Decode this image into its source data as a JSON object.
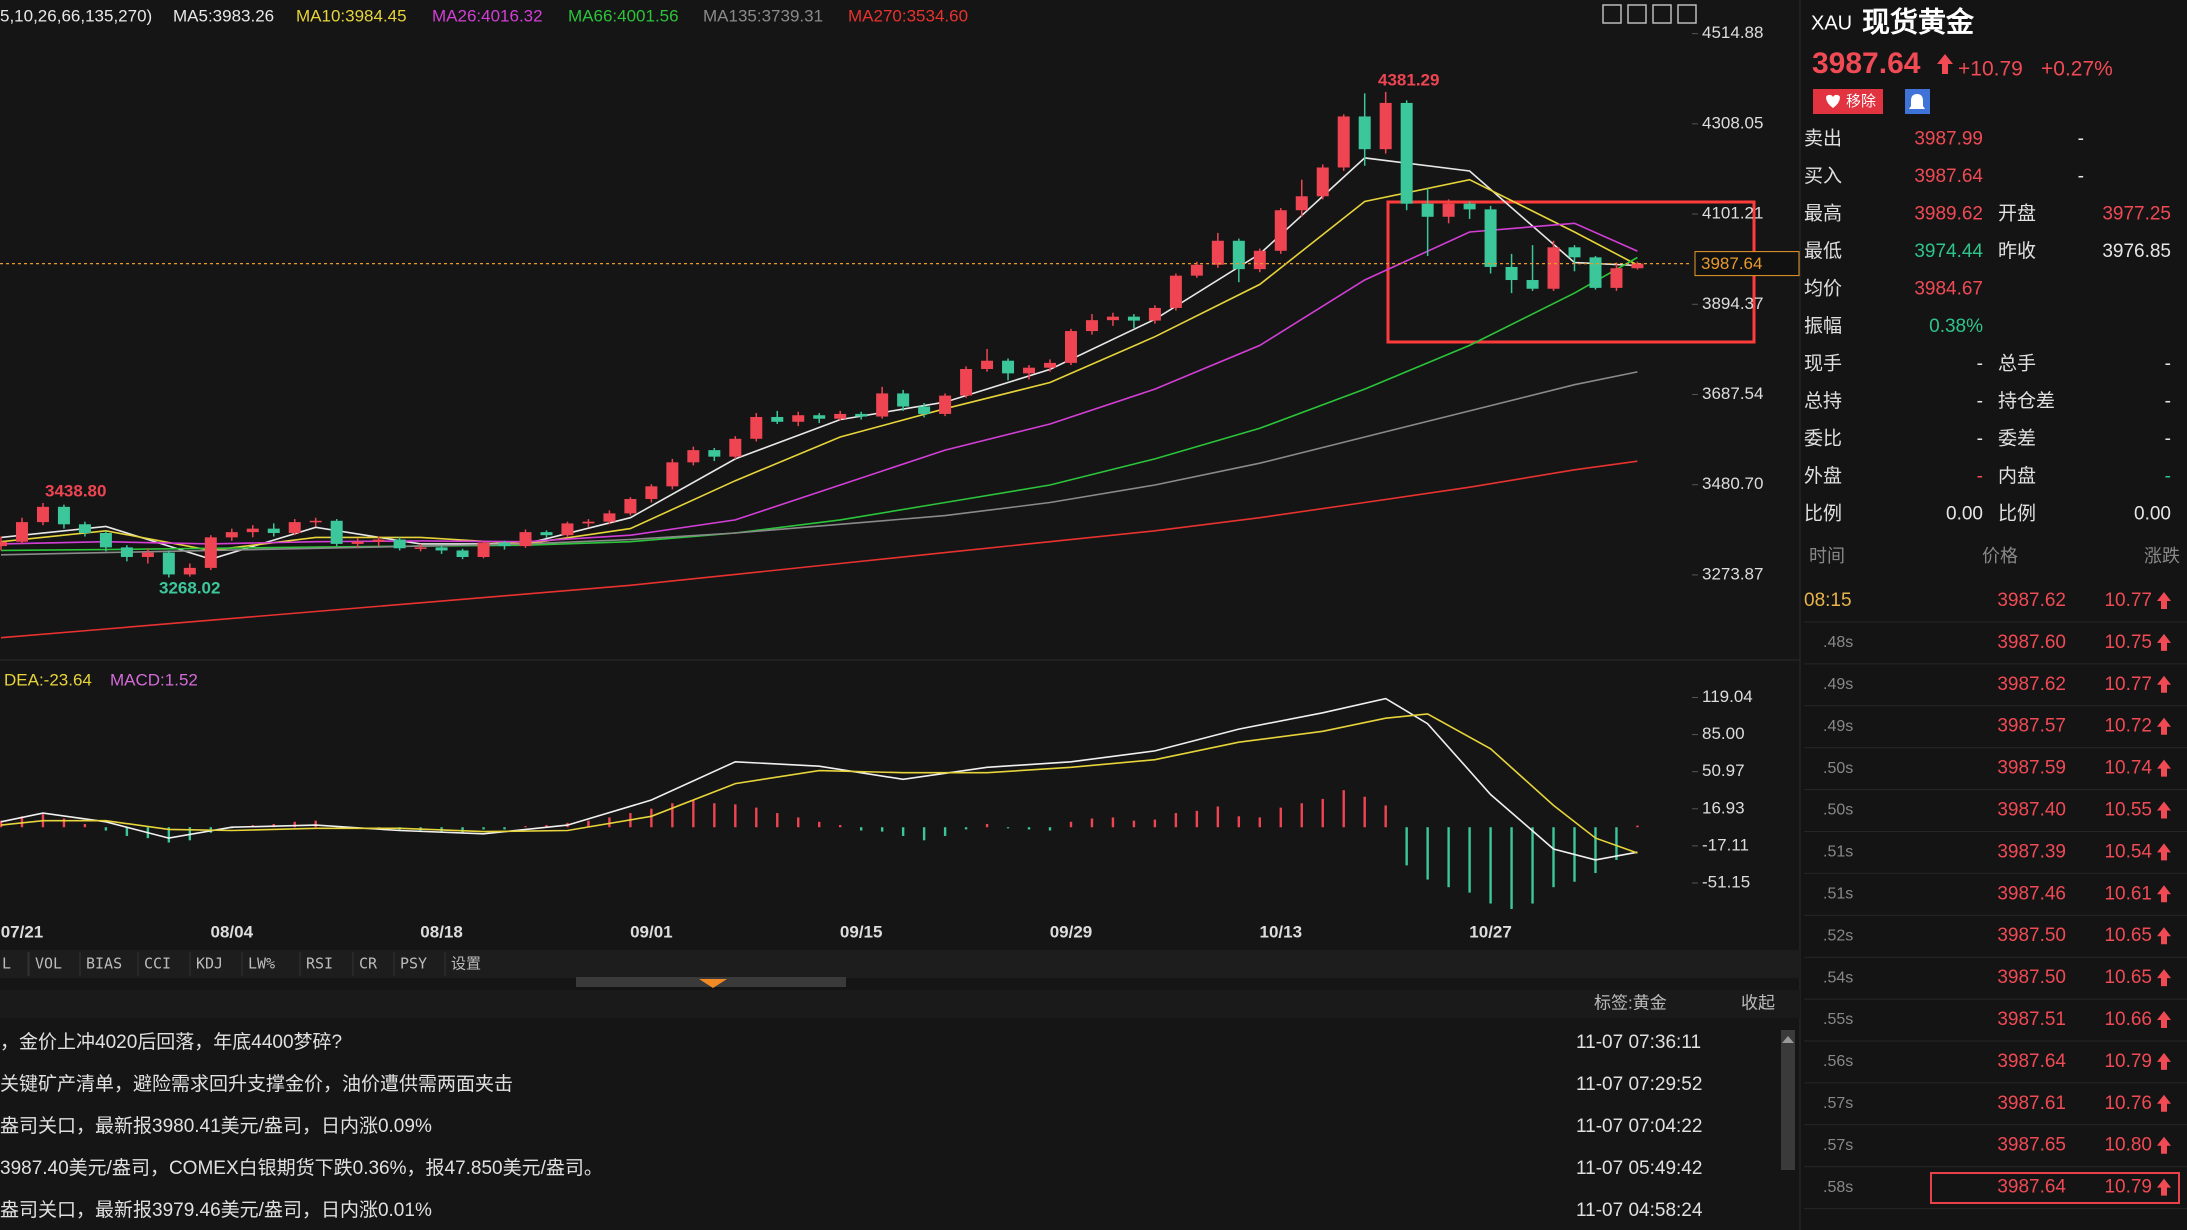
{
  "chart_data": [
    {
      "type": "candlestick",
      "legend_prefix": "5,10,26,66,135,270)",
      "ylim": [
        3088,
        4592
      ],
      "yticks": [
        4514.88,
        4308.05,
        4101.21,
        3894.37,
        3687.54,
        {
          "value": 3480.7,
          "label": "3480.70"
        },
        3273.87
      ],
      "up_color": "#ef4552",
      "down_color": "#3cc79b",
      "candles": [
        [
          3340,
          3362,
          3330,
          3350
        ],
        [
          3350,
          3405,
          3345,
          3395
        ],
        [
          3395,
          3438.8,
          3388,
          3430
        ],
        [
          3430,
          3435,
          3380,
          3390
        ],
        [
          3390,
          3396,
          3362,
          3370
        ],
        [
          3370,
          3375,
          3328,
          3337
        ],
        [
          3337,
          3342,
          3305,
          3315
        ],
        [
          3315,
          3335,
          3300,
          3325
        ],
        [
          3325,
          3330,
          3268.02,
          3275
        ],
        [
          3275,
          3300,
          3270,
          3290
        ],
        [
          3290,
          3365,
          3285,
          3360
        ],
        [
          3360,
          3380,
          3352,
          3372
        ],
        [
          3372,
          3388,
          3360,
          3380
        ],
        [
          3380,
          3392,
          3362,
          3370
        ],
        [
          3370,
          3402,
          3365,
          3395
        ],
        [
          3395,
          3405,
          3385,
          3398
        ],
        [
          3398,
          3402,
          3340,
          3345
        ],
        [
          3345,
          3358,
          3335,
          3350
        ],
        [
          3350,
          3362,
          3340,
          3355
        ],
        [
          3355,
          3360,
          3330,
          3335
        ],
        [
          3335,
          3345,
          3328,
          3337
        ],
        [
          3337,
          3342,
          3322,
          3330
        ],
        [
          3330,
          3334,
          3310,
          3315
        ],
        [
          3315,
          3352,
          3312,
          3348
        ],
        [
          3348,
          3352,
          3332,
          3340
        ],
        [
          3340,
          3378,
          3336,
          3372
        ],
        [
          3372,
          3376,
          3358,
          3365
        ],
        [
          3365,
          3396,
          3360,
          3392
        ],
        [
          3392,
          3402,
          3384,
          3396
        ],
        [
          3396,
          3422,
          3390,
          3415
        ],
        [
          3415,
          3452,
          3410,
          3448
        ],
        [
          3448,
          3482,
          3440,
          3477
        ],
        [
          3477,
          3540,
          3470,
          3532
        ],
        [
          3532,
          3568,
          3525,
          3560
        ],
        [
          3560,
          3565,
          3535,
          3545
        ],
        [
          3545,
          3592,
          3540,
          3586
        ],
        [
          3586,
          3645,
          3580,
          3636
        ],
        [
          3636,
          3650,
          3620,
          3625
        ],
        [
          3625,
          3648,
          3615,
          3640
        ],
        [
          3640,
          3645,
          3622,
          3632
        ],
        [
          3632,
          3650,
          3628,
          3643
        ],
        [
          3643,
          3648,
          3630,
          3637
        ],
        [
          3637,
          3705,
          3632,
          3690
        ],
        [
          3690,
          3698,
          3650,
          3660
        ],
        [
          3660,
          3668,
          3635,
          3643
        ],
        [
          3643,
          3690,
          3638,
          3685
        ],
        [
          3685,
          3752,
          3680,
          3746
        ],
        [
          3746,
          3792,
          3740,
          3765
        ],
        [
          3765,
          3770,
          3720,
          3736
        ],
        [
          3736,
          3755,
          3722,
          3749
        ],
        [
          3749,
          3768,
          3740,
          3760
        ],
        [
          3760,
          3838,
          3755,
          3833
        ],
        [
          3833,
          3872,
          3825,
          3858
        ],
        [
          3858,
          3875,
          3845,
          3866
        ],
        [
          3866,
          3872,
          3840,
          3857
        ],
        [
          3857,
          3892,
          3850,
          3886
        ],
        [
          3886,
          3965,
          3880,
          3960
        ],
        [
          3960,
          3992,
          3955,
          3985
        ],
        [
          3985,
          4058,
          3978,
          4040
        ],
        [
          4040,
          4045,
          3945,
          3975
        ],
        [
          3975,
          4022,
          3968,
          4017
        ],
        [
          4017,
          4115,
          4010,
          4110
        ],
        [
          4110,
          4180,
          4095,
          4142
        ],
        [
          4142,
          4215,
          4135,
          4208
        ],
        [
          4208,
          4330,
          4200,
          4325
        ],
        [
          4325,
          4378,
          4212,
          4250
        ],
        [
          4250,
          4381.29,
          4240,
          4356
        ],
        [
          4356,
          4362,
          4110,
          4125
        ],
        [
          4125,
          4160,
          4005,
          4095
        ],
        [
          4095,
          4135,
          4080,
          4125
        ],
        [
          4125,
          4130,
          4090,
          4112
        ],
        [
          4112,
          4120,
          3965,
          3980
        ],
        [
          3980,
          4010,
          3920,
          3950
        ],
        [
          3950,
          4030,
          3925,
          3930
        ],
        [
          3930,
          4040,
          3925,
          4025
        ],
        [
          4025,
          4030,
          3970,
          4002
        ],
        [
          4002,
          4005,
          3928,
          3932
        ],
        [
          3932,
          3990,
          3925,
          3977
        ],
        [
          3977,
          3992,
          3974,
          3987.64
        ]
      ],
      "annotations": [
        {
          "label": "4381.29"
        },
        {
          "label": "3438.80"
        },
        {
          "label": "3268.02"
        }
      ],
      "x": [
        0,
        5,
        10,
        15,
        20,
        25,
        30,
        35,
        40,
        45,
        50,
        55,
        60,
        65,
        70,
        75,
        78
      ],
      "series": [
        {
          "name": "MA5:3983.26",
          "color": "#e8e8e8",
          "values": [
            3360,
            3385,
            3310,
            3383,
            3345,
            3345,
            3405,
            3540,
            3630,
            3670,
            3745,
            3860,
            4010,
            4230,
            4200,
            3990,
            3983.26
          ]
        },
        {
          "name": "MA10:3984.45",
          "color": "#e6d43a",
          "values": [
            3350,
            3375,
            3330,
            3360,
            3360,
            3345,
            3380,
            3490,
            3590,
            3655,
            3715,
            3820,
            3940,
            4130,
            4180,
            4060,
            3984.45
          ]
        },
        {
          "name": "MA26:4016.32",
          "color": "#d33fd6",
          "values": [
            3345,
            3350,
            3345,
            3350,
            3352,
            3350,
            3365,
            3400,
            3480,
            3560,
            3620,
            3700,
            3800,
            3950,
            4060,
            4080,
            4016.32
          ]
        },
        {
          "name": "MA66:4001.56",
          "color": "#2bc43a",
          "values": [
            3330,
            3332,
            3335,
            3338,
            3340,
            3342,
            3350,
            3370,
            3400,
            3440,
            3480,
            3540,
            3610,
            3700,
            3800,
            3920,
            4001.56
          ]
        },
        {
          "name": "MA135:3739.31",
          "color": "#8a8a8a",
          "values": [
            3320,
            3325,
            3330,
            3335,
            3340,
            3345,
            3355,
            3370,
            3390,
            3410,
            3440,
            3480,
            3530,
            3590,
            3650,
            3710,
            3739.31
          ]
        },
        {
          "name": "MA270:3534.60",
          "color": "#e8322f",
          "values": [
            3130,
            3150,
            3170,
            3190,
            3210,
            3230,
            3250,
            3275,
            3300,
            3325,
            3350,
            3375,
            3405,
            3440,
            3475,
            3515,
            3534.6
          ]
        }
      ]
    },
    {
      "type": "macd",
      "ylim": [
        -79.6,
        147
      ],
      "yticks": [
        119.04,
        {
          "value": 85,
          "label": "85.00"
        },
        50.97,
        16.93,
        -17.11,
        -51.15
      ],
      "categories": [
        null,
        "07/21",
        null,
        null,
        null,
        null,
        null,
        null,
        null,
        null,
        null,
        "08/04",
        null,
        null,
        null,
        null,
        null,
        null,
        null,
        null,
        null,
        "08/18",
        null,
        null,
        null,
        null,
        null,
        null,
        null,
        null,
        null,
        "09/01",
        null,
        null,
        null,
        null,
        null,
        null,
        null,
        null,
        null,
        "09/15",
        null,
        null,
        null,
        null,
        null,
        null,
        null,
        null,
        null,
        "09/29",
        null,
        null,
        null,
        null,
        null,
        null,
        null,
        null,
        null,
        "10/13",
        null,
        null,
        null,
        null,
        null,
        null,
        null,
        null,
        null,
        "10/27",
        null,
        null,
        null,
        null,
        null,
        null,
        null
      ],
      "histogram": {
        "name": "MACD:1.52",
        "color": "#d36bd8",
        "up_color": "#ef4552",
        "down_color": "#3cc79b",
        "values": [
          6,
          10,
          12,
          8,
          3,
          -3,
          -8,
          -10,
          -14,
          -12,
          -5,
          -1,
          2,
          3,
          5,
          6,
          1,
          -1,
          -2,
          -3,
          -3,
          -4,
          -5,
          -2,
          -2,
          1,
          2,
          4,
          6,
          9,
          13,
          17,
          22,
          25,
          22,
          21,
          18,
          13,
          9,
          5,
          2,
          -3,
          -4,
          -8,
          -12,
          -8,
          -2,
          3,
          -1,
          -2,
          -3,
          5,
          8,
          9,
          6,
          7,
          13,
          15,
          19,
          10,
          9,
          18,
          22,
          26,
          34,
          28,
          20,
          -35,
          -48,
          -55,
          -60,
          -70,
          -75,
          -70,
          -55,
          -50,
          -42,
          -30,
          1.52
        ]
      },
      "x": [
        0,
        2,
        5,
        8,
        11,
        15,
        19,
        23,
        27,
        31,
        35,
        39,
        43,
        47,
        51,
        55,
        59,
        63,
        66,
        68,
        71,
        74,
        76,
        78
      ],
      "series": [
        {
          "color": "#f0f0f0",
          "values": [
            5,
            13,
            5,
            -10,
            0,
            2,
            -3,
            -6,
            2,
            25,
            60,
            56,
            44,
            55,
            60,
            70,
            90,
            105,
            118,
            95,
            30,
            -20,
            -30,
            -22.9
          ]
        },
        {
          "name": "DEA:-23.64",
          "color": "#e6d43a",
          "values": [
            2,
            6,
            6,
            -2,
            -3,
            -1,
            -1,
            -4,
            -3,
            10,
            40,
            52,
            50,
            50,
            55,
            62,
            78,
            88,
            100,
            104,
            72,
            20,
            -10,
            -23.64
          ]
        }
      ]
    }
  ],
  "toolbar": {
    "items": [
      "L",
      "VOL",
      "BIAS",
      "CCI",
      "KDJ",
      "LW%",
      "RSI",
      "CR",
      "PSY",
      "设置"
    ],
    "tag": "标签:黄金",
    "collapse": "收起"
  },
  "news": [
    {
      "text": "，金价上冲4020后回落，年底4400梦碎?",
      "time": "11-07 07:36:11"
    },
    {
      "text": "关键矿产清单，避险需求回升支撑金价，油价遭供需两面夹击",
      "time": "11-07 07:29:52"
    },
    {
      "text": "盎司关口，最新报3980.41美元/盎司，日内涨0.09%",
      "time": "11-07 07:04:22"
    },
    {
      "text": "3987.40美元/盎司，COMEX白银期货下跌0.36%，报47.850美元/盎司。",
      "time": "11-07 05:49:42"
    },
    {
      "text": "盎司关口，最新报3979.46美元/盎司，日内涨0.01%",
      "time": "11-07 04:58:24"
    }
  ],
  "quote": {
    "symbol": "XAU",
    "name": "现货黄金",
    "price": "3987.64",
    "change": "+10.79",
    "change_pct": "+0.27%",
    "remove": "移除",
    "rows": [
      [
        "卖出",
        "3987.99",
        "-"
      ],
      [
        "买入",
        "3987.64",
        "-"
      ],
      [
        "最高",
        "3989.62",
        "开盘",
        "3977.25"
      ],
      [
        "最低",
        "3974.44",
        "昨收",
        "3976.85"
      ],
      [
        "均价",
        "3984.67"
      ],
      [
        "振幅",
        "0.38%"
      ],
      [
        "现手",
        "-",
        "总手",
        "-"
      ],
      [
        "总持",
        "-",
        "持仓差",
        "-"
      ],
      [
        "委比",
        "-",
        "委差",
        "-"
      ],
      [
        "外盘",
        "-",
        "内盘",
        "-"
      ],
      [
        "比例",
        "0.00",
        "比例",
        "0.00"
      ]
    ]
  },
  "ticks": {
    "header": [
      "时间",
      "价格",
      "涨跌"
    ],
    "rows": [
      [
        "08:15",
        "3987.62",
        "10.77"
      ],
      [
        ".48s",
        "3987.60",
        "10.75"
      ],
      [
        ".49s",
        "3987.62",
        "10.77"
      ],
      [
        ".49s",
        "3987.57",
        "10.72"
      ],
      [
        ".50s",
        "3987.59",
        "10.74"
      ],
      [
        ".50s",
        "3987.40",
        "10.55"
      ],
      [
        ".51s",
        "3987.39",
        "10.54"
      ],
      [
        ".51s",
        "3987.46",
        "10.61"
      ],
      [
        ".52s",
        "3987.50",
        "10.65"
      ],
      [
        ".54s",
        "3987.50",
        "10.65"
      ],
      [
        ".55s",
        "3987.51",
        "10.66"
      ],
      [
        ".56s",
        "3987.64",
        "10.79"
      ],
      [
        ".57s",
        "3987.61",
        "10.76"
      ],
      [
        ".57s",
        "3987.65",
        "10.80"
      ],
      [
        ".58s",
        "3987.64",
        "10.79"
      ]
    ]
  }
}
